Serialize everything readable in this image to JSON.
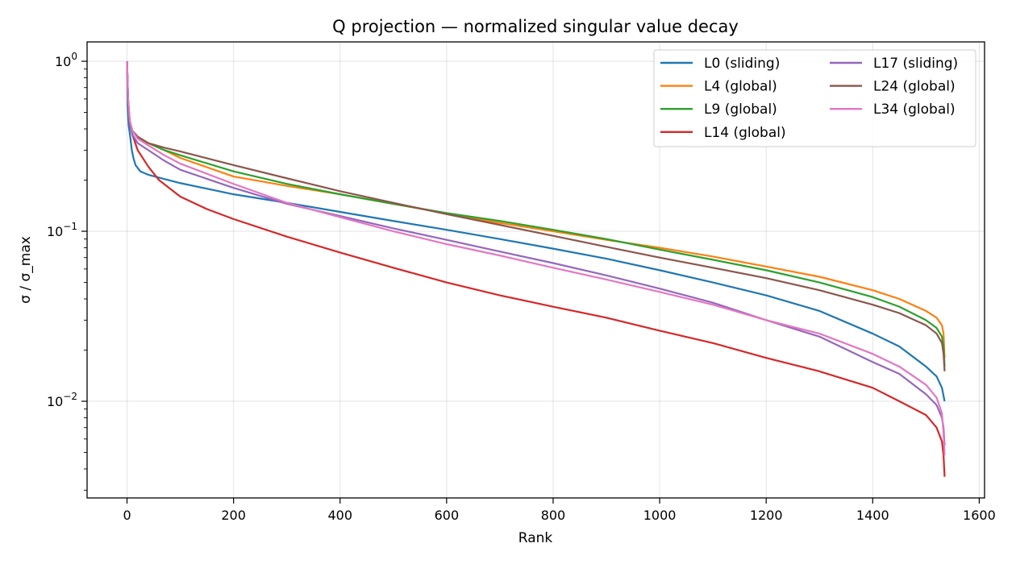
{
  "chart_data": {
    "type": "line",
    "title": "Q projection — normalized singular value decay",
    "xlabel": "Rank",
    "ylabel": "σ / σ_max",
    "xlim": [
      -75,
      1610
    ],
    "ylim": [
      0.0027,
      1.3
    ],
    "yscale": "log",
    "grid": true,
    "legend_position": "top-right",
    "x_ticks": [
      0,
      200,
      400,
      600,
      800,
      1000,
      1200,
      1400,
      1600
    ],
    "x_tick_labels": [
      "0",
      "200",
      "400",
      "600",
      "800",
      "1000",
      "1200",
      "1400",
      "1600"
    ],
    "y_ticks": [
      0.01,
      0.1,
      1
    ],
    "y_tick_labels": [
      {
        "base": "10",
        "exp": "−2"
      },
      {
        "base": "10",
        "exp": "−1"
      },
      {
        "base": "10",
        "exp": "0"
      }
    ],
    "series": [
      {
        "name": "L0 (sliding)",
        "color": "#1f77b4",
        "points": [
          [
            0,
            1.0
          ],
          [
            1,
            0.55
          ],
          [
            3,
            0.42
          ],
          [
            6,
            0.36
          ],
          [
            9,
            0.3
          ],
          [
            12,
            0.27
          ],
          [
            16,
            0.245
          ],
          [
            25,
            0.225
          ],
          [
            40,
            0.215
          ],
          [
            70,
            0.203
          ],
          [
            100,
            0.192
          ],
          [
            200,
            0.165
          ],
          [
            300,
            0.147
          ],
          [
            400,
            0.13
          ],
          [
            500,
            0.115
          ],
          [
            600,
            0.102
          ],
          [
            700,
            0.09
          ],
          [
            800,
            0.079
          ],
          [
            900,
            0.069
          ],
          [
            1000,
            0.059
          ],
          [
            1100,
            0.05
          ],
          [
            1200,
            0.042
          ],
          [
            1300,
            0.034
          ],
          [
            1400,
            0.025
          ],
          [
            1450,
            0.021
          ],
          [
            1500,
            0.016
          ],
          [
            1520,
            0.014
          ],
          [
            1530,
            0.012
          ],
          [
            1535,
            0.01
          ]
        ]
      },
      {
        "name": "L4 (global)",
        "color": "#ff7f0e",
        "points": [
          [
            0,
            1.0
          ],
          [
            2,
            0.6
          ],
          [
            5,
            0.45
          ],
          [
            10,
            0.39
          ],
          [
            20,
            0.36
          ],
          [
            40,
            0.33
          ],
          [
            70,
            0.3
          ],
          [
            100,
            0.27
          ],
          [
            200,
            0.21
          ],
          [
            300,
            0.185
          ],
          [
            400,
            0.165
          ],
          [
            500,
            0.145
          ],
          [
            600,
            0.127
          ],
          [
            700,
            0.112
          ],
          [
            800,
            0.1
          ],
          [
            900,
            0.089
          ],
          [
            1000,
            0.08
          ],
          [
            1100,
            0.071
          ],
          [
            1200,
            0.062
          ],
          [
            1300,
            0.054
          ],
          [
            1400,
            0.045
          ],
          [
            1450,
            0.04
          ],
          [
            1500,
            0.034
          ],
          [
            1520,
            0.031
          ],
          [
            1530,
            0.028
          ],
          [
            1533,
            0.025
          ],
          [
            1535,
            0.018
          ]
        ]
      },
      {
        "name": "L9 (global)",
        "color": "#2ca02c",
        "points": [
          [
            0,
            1.0
          ],
          [
            2,
            0.58
          ],
          [
            5,
            0.44
          ],
          [
            10,
            0.39
          ],
          [
            20,
            0.36
          ],
          [
            40,
            0.33
          ],
          [
            70,
            0.3
          ],
          [
            100,
            0.28
          ],
          [
            200,
            0.225
          ],
          [
            300,
            0.19
          ],
          [
            400,
            0.165
          ],
          [
            500,
            0.145
          ],
          [
            600,
            0.128
          ],
          [
            700,
            0.115
          ],
          [
            800,
            0.102
          ],
          [
            900,
            0.09
          ],
          [
            1000,
            0.078
          ],
          [
            1100,
            0.068
          ],
          [
            1200,
            0.059
          ],
          [
            1300,
            0.05
          ],
          [
            1400,
            0.041
          ],
          [
            1450,
            0.036
          ],
          [
            1500,
            0.03
          ],
          [
            1520,
            0.027
          ],
          [
            1530,
            0.024
          ],
          [
            1533,
            0.021
          ],
          [
            1535,
            0.016
          ]
        ]
      },
      {
        "name": "L14 (global)",
        "color": "#d62728",
        "points": [
          [
            0,
            1.0
          ],
          [
            2,
            0.6
          ],
          [
            5,
            0.45
          ],
          [
            10,
            0.37
          ],
          [
            20,
            0.3
          ],
          [
            40,
            0.24
          ],
          [
            60,
            0.2
          ],
          [
            100,
            0.16
          ],
          [
            150,
            0.135
          ],
          [
            200,
            0.118
          ],
          [
            300,
            0.093
          ],
          [
            400,
            0.075
          ],
          [
            500,
            0.061
          ],
          [
            600,
            0.05
          ],
          [
            700,
            0.042
          ],
          [
            800,
            0.036
          ],
          [
            900,
            0.031
          ],
          [
            1000,
            0.026
          ],
          [
            1100,
            0.022
          ],
          [
            1200,
            0.018
          ],
          [
            1300,
            0.015
          ],
          [
            1400,
            0.012
          ],
          [
            1450,
            0.01
          ],
          [
            1500,
            0.0083
          ],
          [
            1520,
            0.007
          ],
          [
            1530,
            0.0058
          ],
          [
            1533,
            0.0048
          ],
          [
            1535,
            0.0036
          ]
        ]
      },
      {
        "name": "L17 (sliding)",
        "color": "#9467bd",
        "points": [
          [
            0,
            1.0
          ],
          [
            2,
            0.58
          ],
          [
            5,
            0.43
          ],
          [
            10,
            0.37
          ],
          [
            20,
            0.33
          ],
          [
            40,
            0.3
          ],
          [
            70,
            0.26
          ],
          [
            100,
            0.23
          ],
          [
            200,
            0.18
          ],
          [
            300,
            0.145
          ],
          [
            400,
            0.123
          ],
          [
            500,
            0.104
          ],
          [
            600,
            0.089
          ],
          [
            700,
            0.076
          ],
          [
            800,
            0.065
          ],
          [
            900,
            0.055
          ],
          [
            1000,
            0.046
          ],
          [
            1100,
            0.038
          ],
          [
            1200,
            0.03
          ],
          [
            1300,
            0.024
          ],
          [
            1400,
            0.017
          ],
          [
            1450,
            0.0145
          ],
          [
            1500,
            0.011
          ],
          [
            1520,
            0.0095
          ],
          [
            1530,
            0.008
          ],
          [
            1533,
            0.007
          ],
          [
            1535,
            0.0055
          ]
        ]
      },
      {
        "name": "L24 (global)",
        "color": "#8c564b",
        "points": [
          [
            0,
            1.0
          ],
          [
            2,
            0.58
          ],
          [
            5,
            0.44
          ],
          [
            10,
            0.39
          ],
          [
            20,
            0.36
          ],
          [
            40,
            0.33
          ],
          [
            70,
            0.31
          ],
          [
            100,
            0.295
          ],
          [
            200,
            0.245
          ],
          [
            300,
            0.205
          ],
          [
            400,
            0.172
          ],
          [
            500,
            0.147
          ],
          [
            600,
            0.126
          ],
          [
            700,
            0.109
          ],
          [
            800,
            0.094
          ],
          [
            900,
            0.081
          ],
          [
            1000,
            0.07
          ],
          [
            1100,
            0.061
          ],
          [
            1200,
            0.053
          ],
          [
            1300,
            0.045
          ],
          [
            1400,
            0.037
          ],
          [
            1450,
            0.033
          ],
          [
            1500,
            0.028
          ],
          [
            1520,
            0.025
          ],
          [
            1530,
            0.022
          ],
          [
            1533,
            0.019
          ],
          [
            1535,
            0.015
          ]
        ]
      },
      {
        "name": "L34 (global)",
        "color": "#e377c2",
        "points": [
          [
            0,
            1.0
          ],
          [
            2,
            0.6
          ],
          [
            5,
            0.45
          ],
          [
            10,
            0.39
          ],
          [
            20,
            0.35
          ],
          [
            40,
            0.32
          ],
          [
            70,
            0.28
          ],
          [
            100,
            0.25
          ],
          [
            200,
            0.19
          ],
          [
            300,
            0.147
          ],
          [
            400,
            0.121
          ],
          [
            500,
            0.1
          ],
          [
            600,
            0.084
          ],
          [
            700,
            0.072
          ],
          [
            800,
            0.061
          ],
          [
            900,
            0.052
          ],
          [
            1000,
            0.044
          ],
          [
            1100,
            0.037
          ],
          [
            1200,
            0.03
          ],
          [
            1300,
            0.025
          ],
          [
            1400,
            0.019
          ],
          [
            1450,
            0.016
          ],
          [
            1500,
            0.0125
          ],
          [
            1520,
            0.0105
          ],
          [
            1530,
            0.0085
          ],
          [
            1533,
            0.0065
          ],
          [
            1535,
            0.0048
          ]
        ]
      }
    ]
  }
}
